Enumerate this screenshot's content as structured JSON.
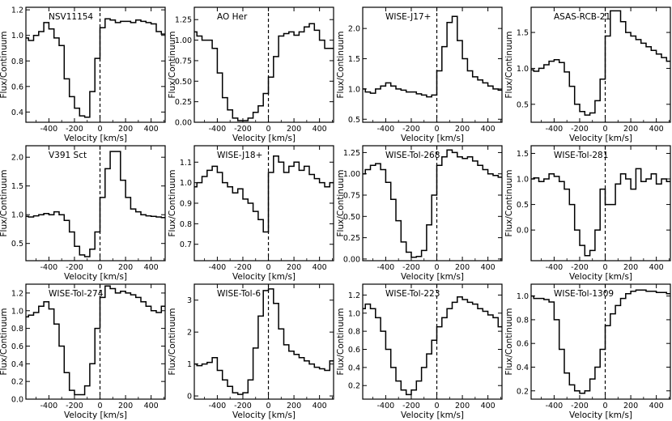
{
  "figure": {
    "layout": "4x3 grid of panels"
  },
  "chart_data": [
    {
      "type": "line",
      "title": "NSV11154",
      "xlabel": "Velocity [km/s]",
      "ylabel": "Flux/Continuum",
      "xlim": [
        -580,
        510
      ],
      "ylim": [
        0.32,
        1.22
      ],
      "xticks": [
        -400,
        -200,
        0,
        200,
        400
      ],
      "yticks": [
        0.4,
        0.6,
        0.8,
        1.0,
        1.2
      ],
      "step": true,
      "zero_line": true,
      "x": [
        -580,
        -540,
        -500,
        -460,
        -420,
        -380,
        -340,
        -300,
        -260,
        -220,
        -180,
        -140,
        -100,
        -60,
        -20,
        20,
        60,
        100,
        140,
        180,
        220,
        260,
        300,
        340,
        380,
        420,
        460,
        500
      ],
      "y": [
        0.98,
        0.96,
        1.0,
        1.03,
        1.1,
        1.05,
        0.98,
        0.92,
        0.66,
        0.52,
        0.43,
        0.37,
        0.36,
        0.56,
        0.82,
        1.06,
        1.13,
        1.12,
        1.1,
        1.11,
        1.11,
        1.1,
        1.12,
        1.11,
        1.1,
        1.09,
        1.03,
        1.01
      ]
    },
    {
      "type": "line",
      "title": "AO Her",
      "xlabel": "Velocity [km/s]",
      "ylabel": "Flux/Continuum",
      "xlim": [
        -580,
        510
      ],
      "ylim": [
        0.0,
        1.4
      ],
      "xticks": [
        -400,
        -200,
        0,
        200,
        400
      ],
      "yticks": [
        0.0,
        0.25,
        0.5,
        0.75,
        1.0,
        1.25
      ],
      "step": true,
      "zero_line": true,
      "x": [
        -580,
        -540,
        -500,
        -460,
        -420,
        -380,
        -340,
        -300,
        -260,
        -220,
        -180,
        -140,
        -100,
        -60,
        -20,
        20,
        60,
        100,
        140,
        180,
        220,
        260,
        300,
        340,
        380,
        420,
        460,
        500
      ],
      "y": [
        1.1,
        1.05,
        1.0,
        1.0,
        0.9,
        0.6,
        0.3,
        0.15,
        0.05,
        0.02,
        0.02,
        0.05,
        0.12,
        0.2,
        0.35,
        0.55,
        0.8,
        1.05,
        1.08,
        1.1,
        1.06,
        1.1,
        1.16,
        1.2,
        1.12,
        1.0,
        0.9,
        0.9
      ]
    },
    {
      "type": "line",
      "title": "WISE-J17+",
      "xlabel": "Velocity [km/s]",
      "ylabel": "Flux/Continuum",
      "xlim": [
        -580,
        510
      ],
      "ylim": [
        0.45,
        2.35
      ],
      "xticks": [
        -400,
        -200,
        0,
        200,
        400
      ],
      "yticks": [
        0.5,
        1.0,
        1.5,
        2.0
      ],
      "step": true,
      "zero_line": true,
      "x": [
        -580,
        -540,
        -500,
        -460,
        -420,
        -380,
        -340,
        -300,
        -260,
        -220,
        -180,
        -140,
        -100,
        -60,
        -20,
        20,
        60,
        100,
        140,
        180,
        220,
        260,
        300,
        340,
        380,
        420,
        460,
        500
      ],
      "y": [
        1.0,
        0.95,
        0.93,
        1.0,
        1.05,
        1.1,
        1.05,
        1.0,
        0.98,
        0.95,
        0.95,
        0.92,
        0.9,
        0.87,
        0.9,
        1.3,
        1.7,
        2.1,
        2.2,
        1.8,
        1.5,
        1.3,
        1.2,
        1.15,
        1.1,
        1.05,
        1.0,
        0.98
      ]
    },
    {
      "type": "line",
      "title": "ASAS-RCB-21",
      "xlabel": "Velocity [km/s]",
      "ylabel": "Flux/Continuum",
      "xlim": [
        -580,
        510
      ],
      "ylim": [
        0.25,
        1.85
      ],
      "xticks": [
        -400,
        -200,
        0,
        200,
        400
      ],
      "yticks": [
        0.5,
        1.0,
        1.5
      ],
      "step": true,
      "zero_line": true,
      "x": [
        -580,
        -540,
        -500,
        -460,
        -420,
        -380,
        -340,
        -300,
        -260,
        -220,
        -180,
        -140,
        -100,
        -60,
        -20,
        20,
        60,
        100,
        140,
        180,
        220,
        260,
        300,
        340,
        380,
        420,
        460,
        500
      ],
      "y": [
        0.98,
        0.96,
        1.0,
        1.05,
        1.1,
        1.12,
        1.08,
        0.95,
        0.75,
        0.5,
        0.4,
        0.35,
        0.38,
        0.55,
        0.85,
        1.45,
        1.8,
        1.8,
        1.65,
        1.5,
        1.45,
        1.4,
        1.35,
        1.3,
        1.25,
        1.2,
        1.15,
        1.1
      ]
    },
    {
      "type": "line",
      "title": "V391 Sct",
      "xlabel": "Velocity [km/s]",
      "ylabel": "Flux/Continuum",
      "xlim": [
        -580,
        510
      ],
      "ylim": [
        0.2,
        2.2
      ],
      "xticks": [
        -400,
        -200,
        0,
        200,
        400
      ],
      "yticks": [
        0.5,
        1.0,
        1.5,
        2.0
      ],
      "step": true,
      "zero_line": true,
      "x": [
        -580,
        -540,
        -500,
        -460,
        -420,
        -380,
        -340,
        -300,
        -260,
        -220,
        -180,
        -140,
        -100,
        -60,
        -20,
        20,
        60,
        100,
        140,
        180,
        220,
        260,
        300,
        340,
        380,
        420,
        460,
        500
      ],
      "y": [
        0.97,
        0.96,
        0.98,
        1.0,
        1.02,
        1.0,
        1.05,
        1.0,
        0.9,
        0.7,
        0.45,
        0.3,
        0.27,
        0.4,
        0.7,
        1.3,
        1.8,
        2.1,
        2.1,
        1.6,
        1.3,
        1.1,
        1.05,
        1.0,
        0.98,
        0.97,
        0.96,
        0.95
      ]
    },
    {
      "type": "line",
      "title": "WISE-J18+",
      "xlabel": "Velocity [km/s]",
      "ylabel": "Flux/Continuum",
      "xlim": [
        -580,
        510
      ],
      "ylim": [
        0.62,
        1.18
      ],
      "xticks": [
        -400,
        -200,
        0,
        200,
        400
      ],
      "yticks": [
        0.7,
        0.8,
        0.9,
        1.0,
        1.1
      ],
      "step": true,
      "zero_line": true,
      "x": [
        -580,
        -540,
        -500,
        -460,
        -420,
        -380,
        -340,
        -300,
        -260,
        -220,
        -180,
        -140,
        -100,
        -60,
        -20,
        20,
        60,
        100,
        140,
        180,
        220,
        260,
        300,
        340,
        380,
        420,
        460,
        500
      ],
      "y": [
        0.98,
        1.0,
        1.03,
        1.06,
        1.08,
        1.05,
        1.0,
        0.98,
        0.95,
        0.97,
        0.92,
        0.9,
        0.86,
        0.82,
        0.76,
        1.05,
        1.13,
        1.1,
        1.05,
        1.08,
        1.1,
        1.06,
        1.08,
        1.04,
        1.02,
        1.0,
        0.98,
        1.0
      ]
    },
    {
      "type": "line",
      "title": "WISE-Tol-268",
      "xlabel": "Velocity [km/s]",
      "ylabel": "Flux/Continuum",
      "xlim": [
        -580,
        510
      ],
      "ylim": [
        -0.02,
        1.33
      ],
      "xticks": [
        -400,
        -200,
        0,
        200,
        400
      ],
      "yticks": [
        0.0,
        0.25,
        0.5,
        0.75,
        1.0,
        1.25
      ],
      "step": true,
      "zero_line": true,
      "x": [
        -580,
        -540,
        -500,
        -460,
        -420,
        -380,
        -340,
        -300,
        -260,
        -220,
        -180,
        -140,
        -100,
        -60,
        -20,
        20,
        60,
        100,
        140,
        180,
        220,
        260,
        300,
        340,
        380,
        420,
        460,
        500
      ],
      "y": [
        1.0,
        1.05,
        1.1,
        1.12,
        1.05,
        0.9,
        0.7,
        0.45,
        0.2,
        0.08,
        0.02,
        0.03,
        0.1,
        0.4,
        0.75,
        1.1,
        1.2,
        1.28,
        1.25,
        1.2,
        1.18,
        1.2,
        1.15,
        1.1,
        1.05,
        1.0,
        0.98,
        0.96
      ]
    },
    {
      "type": "line",
      "title": "WISE-Tol-281",
      "xlabel": "Velocity [km/s]",
      "ylabel": "Flux/Continuum",
      "xlim": [
        -580,
        510
      ],
      "ylim": [
        -0.6,
        1.65
      ],
      "xticks": [
        -400,
        -200,
        0,
        200,
        400
      ],
      "yticks": [
        0.0,
        0.5,
        1.0,
        1.5
      ],
      "step": true,
      "zero_line": true,
      "x": [
        -580,
        -540,
        -500,
        -460,
        -420,
        -380,
        -340,
        -300,
        -260,
        -220,
        -180,
        -140,
        -100,
        -60,
        -20,
        20,
        60,
        100,
        140,
        180,
        220,
        260,
        300,
        340,
        380,
        420,
        460,
        500
      ],
      "y": [
        1.0,
        1.02,
        0.95,
        1.0,
        1.1,
        1.05,
        0.95,
        0.8,
        0.5,
        0.0,
        -0.3,
        -0.5,
        -0.4,
        0.0,
        0.8,
        0.5,
        0.5,
        0.9,
        1.1,
        1.0,
        0.8,
        1.2,
        0.95,
        1.0,
        1.1,
        0.9,
        1.0,
        0.95
      ]
    },
    {
      "type": "line",
      "title": "WISE-Tol-274",
      "xlabel": "Velocity [km/s]",
      "ylabel": "Flux/Continuum",
      "xlim": [
        -580,
        510
      ],
      "ylim": [
        0.0,
        1.3
      ],
      "xticks": [
        -400,
        -200,
        0,
        200,
        400
      ],
      "yticks": [
        0.0,
        0.2,
        0.4,
        0.6,
        0.8,
        1.0,
        1.2
      ],
      "step": true,
      "zero_line": true,
      "x": [
        -580,
        -540,
        -500,
        -460,
        -420,
        -380,
        -340,
        -300,
        -260,
        -220,
        -180,
        -140,
        -100,
        -60,
        -20,
        20,
        60,
        100,
        140,
        180,
        220,
        260,
        300,
        340,
        380,
        420,
        460,
        500
      ],
      "y": [
        0.93,
        0.95,
        0.98,
        1.05,
        1.1,
        1.02,
        0.85,
        0.6,
        0.3,
        0.1,
        0.05,
        0.05,
        0.15,
        0.4,
        0.8,
        1.15,
        1.28,
        1.25,
        1.2,
        1.22,
        1.2,
        1.18,
        1.15,
        1.1,
        1.05,
        1.0,
        0.98,
        1.05
      ]
    },
    {
      "type": "line",
      "title": "WISE-Tol-6",
      "xlabel": "Velocity [km/s]",
      "ylabel": "Flux/Continuum",
      "xlim": [
        -580,
        510
      ],
      "ylim": [
        -0.1,
        3.5
      ],
      "xticks": [
        -400,
        -200,
        0,
        200,
        400
      ],
      "yticks": [
        0,
        1,
        2,
        3
      ],
      "step": true,
      "zero_line": true,
      "x": [
        -580,
        -540,
        -500,
        -460,
        -420,
        -380,
        -340,
        -300,
        -260,
        -220,
        -180,
        -140,
        -100,
        -60,
        -20,
        20,
        60,
        100,
        140,
        180,
        220,
        260,
        300,
        340,
        380,
        420,
        460,
        500
      ],
      "y": [
        1.0,
        0.95,
        1.0,
        1.05,
        1.2,
        0.8,
        0.5,
        0.3,
        0.1,
        0.05,
        0.1,
        0.5,
        1.5,
        2.5,
        3.3,
        3.35,
        2.9,
        2.1,
        1.6,
        1.4,
        1.3,
        1.2,
        1.1,
        1.0,
        0.9,
        0.85,
        0.8,
        1.1
      ]
    },
    {
      "type": "line",
      "title": "WISE-Tol-223",
      "xlabel": "Velocity [km/s]",
      "ylabel": "Flux/Continuum",
      "xlim": [
        -580,
        510
      ],
      "ylim": [
        0.05,
        1.32
      ],
      "xticks": [
        -400,
        -200,
        0,
        200,
        400
      ],
      "yticks": [
        0.2,
        0.4,
        0.6,
        0.8,
        1.0,
        1.2
      ],
      "step": true,
      "zero_line": true,
      "x": [
        -580,
        -540,
        -500,
        -460,
        -420,
        -380,
        -340,
        -300,
        -260,
        -220,
        -180,
        -140,
        -100,
        -60,
        -20,
        20,
        60,
        100,
        140,
        180,
        220,
        260,
        300,
        340,
        380,
        420,
        460,
        500
      ],
      "y": [
        1.05,
        1.1,
        1.05,
        0.95,
        0.8,
        0.6,
        0.4,
        0.25,
        0.15,
        0.1,
        0.15,
        0.25,
        0.4,
        0.55,
        0.7,
        0.85,
        0.95,
        1.05,
        1.12,
        1.18,
        1.15,
        1.12,
        1.1,
        1.05,
        1.02,
        0.98,
        0.95,
        0.85
      ]
    },
    {
      "type": "line",
      "title": "WISE-Tol-1309",
      "xlabel": "Velocity [km/s]",
      "ylabel": "Flux/Continuum",
      "xlim": [
        -580,
        510
      ],
      "ylim": [
        0.13,
        1.1
      ],
      "xticks": [
        -400,
        -200,
        0,
        200,
        400
      ],
      "yticks": [
        0.2,
        0.4,
        0.6,
        0.8,
        1.0
      ],
      "step": true,
      "zero_line": true,
      "x": [
        -580,
        -540,
        -500,
        -460,
        -420,
        -380,
        -340,
        -300,
        -260,
        -220,
        -180,
        -140,
        -100,
        -60,
        -20,
        20,
        60,
        100,
        140,
        180,
        220,
        260,
        300,
        340,
        380,
        420,
        460,
        500
      ],
      "y": [
        1.0,
        0.98,
        0.98,
        0.97,
        0.95,
        0.8,
        0.55,
        0.35,
        0.25,
        0.2,
        0.18,
        0.2,
        0.3,
        0.4,
        0.55,
        0.75,
        0.85,
        0.92,
        0.98,
        1.02,
        1.04,
        1.05,
        1.05,
        1.04,
        1.04,
        1.03,
        1.03,
        1.02
      ]
    }
  ]
}
